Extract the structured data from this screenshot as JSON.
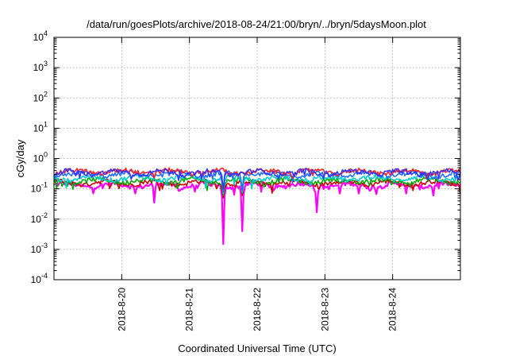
{
  "chart_data": {
    "type": "line",
    "title": "/data/run/goesPlots/archive/2018-08-24/21:00/bryn/../bryn/5daysMoon.plot",
    "xlabel": "Coordinated Universal Time (UTC)",
    "ylabel": "cGy/day",
    "yscale": "log",
    "ylim_exponents": [
      -4,
      4
    ],
    "ytick_labels": [
      {
        "base": "10",
        "exp": "-4"
      },
      {
        "base": "10",
        "exp": "-3"
      },
      {
        "base": "10",
        "exp": "-2"
      },
      {
        "base": "10",
        "exp": "-1"
      },
      {
        "base": "10",
        "exp": "0"
      },
      {
        "base": "10",
        "exp": "1"
      },
      {
        "base": "10",
        "exp": "2"
      },
      {
        "base": "10",
        "exp": "3"
      },
      {
        "base": "10",
        "exp": "4"
      }
    ],
    "xlim_days": [
      0,
      6
    ],
    "xtick_labels": [
      "2018-8-20",
      "2018-8-21",
      "2018-8-22",
      "2018-8-23",
      "2018-8-24"
    ],
    "xtick_days": [
      1,
      2,
      3,
      4,
      5
    ],
    "grid": true,
    "series": [
      {
        "color": "#ff00ff",
        "base": 0.13,
        "dips": [
          [
            1.2,
            0.07
          ],
          [
            1.48,
            0.035
          ],
          [
            1.85,
            0.07
          ],
          [
            2.5,
            0.0015
          ],
          [
            2.78,
            0.004
          ],
          [
            3.88,
            0.017
          ],
          [
            4.22,
            0.07
          ],
          [
            4.5,
            0.07
          ],
          [
            4.67,
            0.08
          ],
          [
            5.2,
            0.07
          ],
          [
            5.6,
            0.06
          ]
        ]
      },
      {
        "color": "#cc0000",
        "base": 0.155,
        "dips": [
          [
            2.5,
            0.05
          ],
          [
            2.78,
            0.06
          ]
        ]
      },
      {
        "color": "#00aa00",
        "base": 0.18,
        "dips": [
          [
            2.5,
            0.06
          ],
          [
            2.78,
            0.07
          ]
        ]
      },
      {
        "color": "#00cccc",
        "base": 0.22,
        "dips": [
          [
            2.5,
            0.07
          ],
          [
            2.78,
            0.08
          ]
        ]
      },
      {
        "color": "#1f6fff",
        "base": 0.3,
        "dips": [
          [
            2.5,
            0.08
          ],
          [
            2.78,
            0.09
          ]
        ]
      },
      {
        "color": "#ff2020",
        "base": 0.36,
        "dips": []
      },
      {
        "color": "#3333ff",
        "base": 0.34,
        "dips": [
          [
            2.5,
            0.1
          ]
        ]
      }
    ]
  }
}
